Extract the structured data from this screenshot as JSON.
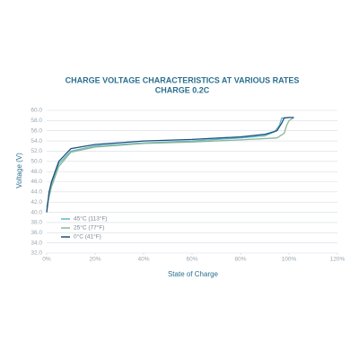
{
  "chart_data": {
    "type": "line",
    "title": "CHARGE VOLTAGE CHARACTERISTICS AT VARIOUS RATES",
    "subtitle": "CHARGE 0.2C",
    "x_label": "State of Charge",
    "y_label": "Voltage (V)",
    "xlim": [
      0,
      120
    ],
    "ylim": [
      32,
      60
    ],
    "xticks": [
      {
        "value": 0,
        "label": "0%"
      },
      {
        "value": 20,
        "label": "20%"
      },
      {
        "value": 40,
        "label": "40%"
      },
      {
        "value": 60,
        "label": "60%"
      },
      {
        "value": 80,
        "label": "80%"
      },
      {
        "value": 100,
        "label": "100%"
      },
      {
        "value": 120,
        "label": "120%"
      }
    ],
    "yticks": [
      {
        "value": 32,
        "label": "32.0"
      },
      {
        "value": 34,
        "label": "34.0"
      },
      {
        "value": 36,
        "label": "36.0"
      },
      {
        "value": 38,
        "label": "38.0"
      },
      {
        "value": 40,
        "label": "40.0"
      },
      {
        "value": 42,
        "label": "42.0"
      },
      {
        "value": 44,
        "label": "44.0"
      },
      {
        "value": 46,
        "label": "46.0"
      },
      {
        "value": 48,
        "label": "48.0"
      },
      {
        "value": 50,
        "label": "50.0"
      },
      {
        "value": 52,
        "label": "52.0"
      },
      {
        "value": 54,
        "label": "54.0"
      },
      {
        "value": 56,
        "label": "56.0"
      },
      {
        "value": 58,
        "label": "58.0"
      },
      {
        "value": 60,
        "label": "60.0"
      }
    ],
    "grid": true,
    "series": [
      {
        "name": "45°C (113°F)",
        "color": "#5fb8c6",
        "x": [
          0,
          1,
          2,
          5,
          10,
          20,
          40,
          60,
          80,
          90,
          94,
          96,
          97,
          100
        ],
        "values": [
          40,
          43.5,
          45.5,
          49.5,
          52,
          53,
          53.6,
          54,
          54.6,
          55,
          55.8,
          57,
          58.5,
          58.6
        ]
      },
      {
        "name": "25°C (77°F)",
        "color": "#8fb59a",
        "x": [
          0,
          1,
          2,
          5,
          10,
          20,
          40,
          60,
          80,
          95,
          98,
          99,
          100,
          102
        ],
        "values": [
          41,
          43,
          45,
          49,
          51.8,
          52.8,
          53.5,
          53.8,
          54.2,
          54.6,
          55.5,
          57,
          58,
          58.6
        ]
      },
      {
        "name": "0°C (41°F)",
        "color": "#1d4f7c",
        "x": [
          0,
          1,
          2,
          5,
          10,
          20,
          40,
          60,
          80,
          90,
          95,
          97,
          98,
          100,
          102
        ],
        "values": [
          40,
          44,
          46,
          50,
          52.5,
          53.3,
          54,
          54.3,
          54.8,
          55.3,
          56,
          57.5,
          58.5,
          58.6,
          58.6
        ]
      }
    ]
  }
}
